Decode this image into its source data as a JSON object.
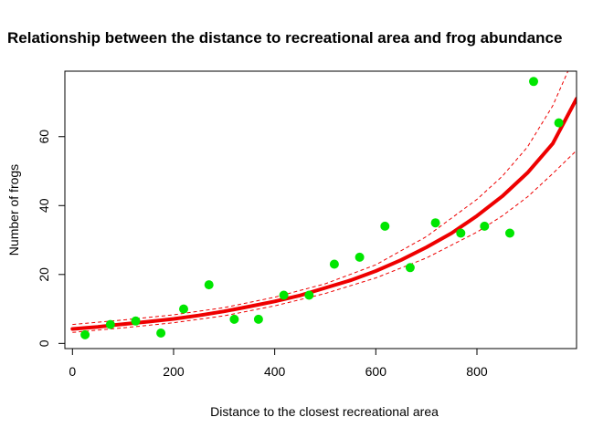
{
  "chart_data": {
    "type": "scatter",
    "title": "Relationship between the distance to recreational area and frog abundance",
    "xlabel": "Distance to the closest recreational area",
    "ylabel": "Number of frogs",
    "xlim": [
      -15,
      997
    ],
    "ylim": [
      -1.5,
      79
    ],
    "x_ticks": [
      0,
      200,
      400,
      600,
      800
    ],
    "y_ticks": [
      0,
      20,
      40,
      60
    ],
    "grid": false,
    "legend": "none",
    "colors": {
      "points": "#00e600",
      "fit": "#ee0000",
      "band": "#ee0000",
      "axes": "#000000"
    },
    "points": {
      "x": [
        25,
        75,
        125,
        175,
        220,
        270,
        320,
        368,
        418,
        468,
        518,
        568,
        618,
        668,
        718,
        768,
        815,
        865,
        912,
        962
      ],
      "y": [
        2.5,
        5.5,
        6.5,
        3,
        10,
        17,
        7,
        7,
        14,
        14,
        23,
        25,
        34,
        22,
        35,
        32,
        34,
        32,
        76,
        64
      ]
    },
    "fit": {
      "x": [
        0,
        50,
        100,
        150,
        200,
        250,
        300,
        350,
        400,
        450,
        500,
        550,
        600,
        650,
        700,
        750,
        800,
        850,
        900,
        950,
        997
      ],
      "y": [
        4.2,
        4.8,
        5.6,
        6.3,
        7.1,
        8.1,
        9.3,
        10.7,
        12.2,
        13.9,
        16.1,
        18.3,
        21,
        24.2,
        27.9,
        32,
        37,
        42.7,
        49.5,
        58,
        71
      ]
    },
    "upper_band": {
      "x": [
        0,
        100,
        200,
        300,
        400,
        500,
        600,
        700,
        800,
        850,
        900,
        950,
        980
      ],
      "y": [
        5.5,
        6.8,
        8.3,
        10.4,
        13.4,
        17.3,
        22.8,
        31,
        41.8,
        48.5,
        57,
        69,
        79
      ]
    },
    "lower_band": {
      "x": [
        0,
        100,
        200,
        300,
        400,
        500,
        600,
        700,
        800,
        850,
        900,
        950,
        997
      ],
      "y": [
        3.2,
        4.5,
        6,
        8,
        10.9,
        14.5,
        19,
        24.8,
        32.3,
        37,
        42.5,
        49.3,
        56
      ]
    }
  }
}
